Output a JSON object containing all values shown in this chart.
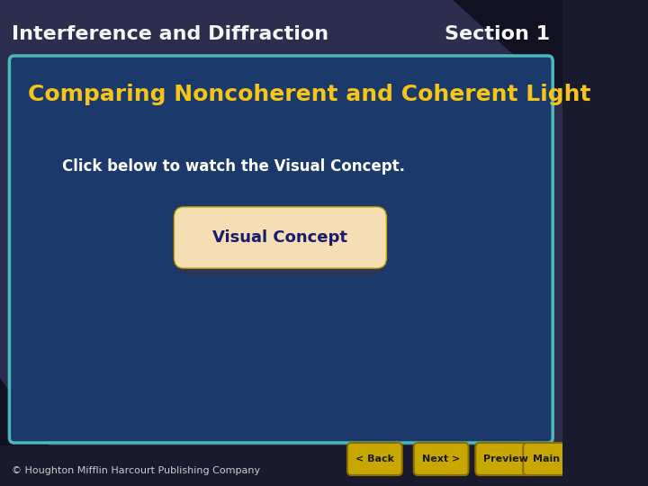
{
  "bg_color": "#1a1a2e",
  "header_bg": "#2d2d4e",
  "header_title": "Interference and Diffraction",
  "header_section": "Section 1",
  "header_text_color": "#f5f5f5",
  "content_bg": "#1b3a6b",
  "content_border": "#4db8b8",
  "slide_title": "Comparing Noncoherent and Coherent Light",
  "slide_title_color": "#f5c518",
  "body_text": "Click below to watch the Visual Concept.",
  "body_text_color": "#ffffff",
  "button_text": "Visual Concept",
  "button_bg": "#f5deb3",
  "button_text_color": "#1a1a6e",
  "footer_text": "© Houghton Mifflin Harcourt Publishing Company",
  "footer_color": "#cccccc",
  "nav_buttons": [
    "< Back",
    "Next >",
    "Preview",
    "Main"
  ],
  "nav_bg": "#c8a800",
  "nav_text_color": "#1a1a1a",
  "dark_corner_color": "#111122"
}
